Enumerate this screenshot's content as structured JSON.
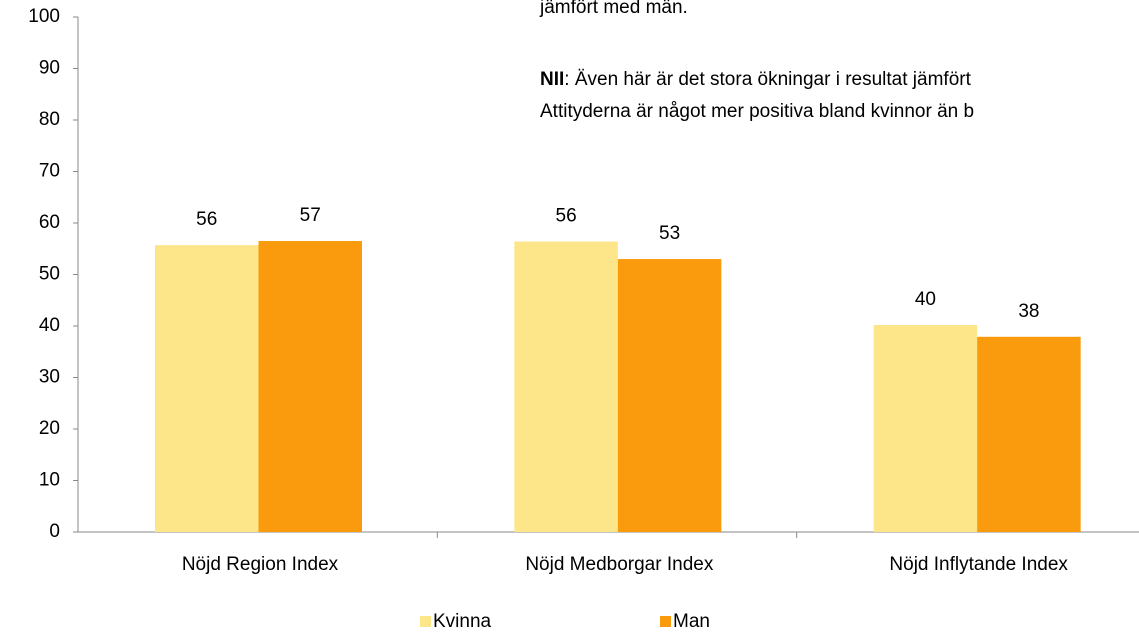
{
  "chart_data": {
    "type": "bar",
    "categories": [
      "Nöjd Region Index",
      "Nöjd Medborgar Index",
      "Nöjd Inflytande Index"
    ],
    "series": [
      {
        "name": "Kvinna",
        "color": "#fde68a",
        "values": [
          55.7,
          56.4,
          40.2
        ],
        "value_labels": [
          "56",
          "56",
          "40"
        ]
      },
      {
        "name": "Man",
        "color": "#f99b0c",
        "values": [
          56.5,
          53,
          37.9
        ],
        "value_labels": [
          "57",
          "53",
          "38"
        ]
      }
    ],
    "ylim": [
      0,
      100
    ],
    "yticks": [
      0,
      10,
      20,
      30,
      40,
      50,
      60,
      70,
      80,
      90,
      100
    ],
    "grid": false,
    "legend": "bottom",
    "annotations": [
      "jämfört med män.",
      "NII",
      ": Även här är det stora ökningar i resultat jämfört",
      "Attityderna är något mer positiva bland kvinnor än b"
    ]
  }
}
